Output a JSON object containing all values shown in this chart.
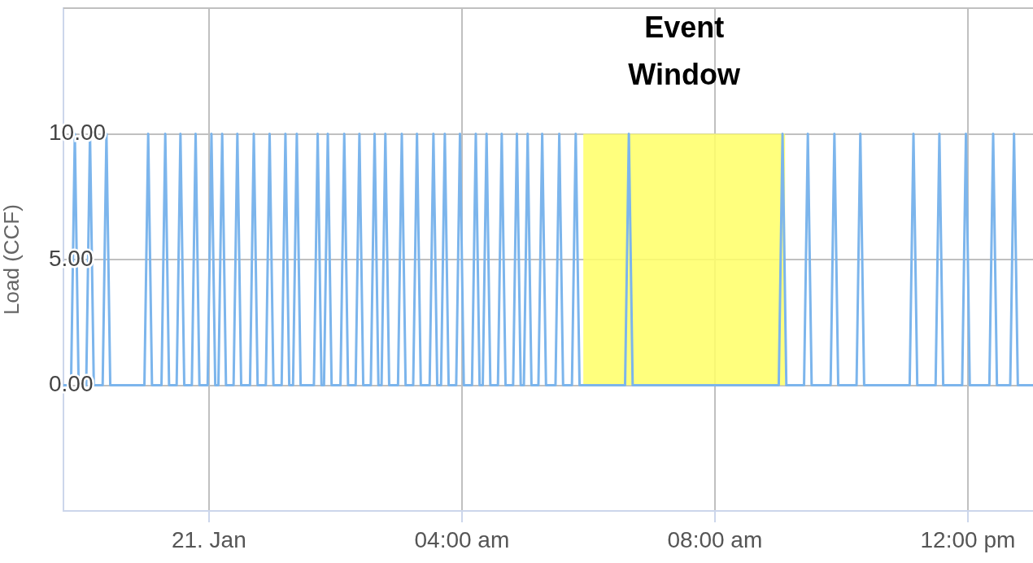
{
  "chart_data": {
    "type": "line",
    "ylabel": "Load (CCF)",
    "xlim": [
      -2.3,
      13.03
    ],
    "xticks": [
      {
        "value": 0,
        "label": "21. Jan"
      },
      {
        "value": 4,
        "label": "04:00 am"
      },
      {
        "value": 8,
        "label": "08:00 am"
      },
      {
        "value": 12,
        "label": "12:00 pm"
      }
    ],
    "ylim": [
      -5,
      15
    ],
    "yticks": [
      {
        "value": 0,
        "label": "0.00"
      },
      {
        "value": 5,
        "label": "5.00"
      },
      {
        "value": 10,
        "label": "10.00"
      }
    ],
    "grid": true,
    "marker": "none",
    "line_style": "solid",
    "bands": [
      {
        "axis": "x",
        "from": 5.92,
        "to": 9.11,
        "label": "Event Window",
        "color": "#ffff66"
      }
    ],
    "series": [
      {
        "color": "#7cb5ec",
        "x": [
          -2.3,
          -2.18,
          -2.12,
          -2.06,
          -1.94,
          -1.88,
          -1.82,
          -1.68,
          -1.62,
          -1.56,
          -1.02,
          -0.96,
          -0.9,
          -0.75,
          -0.69,
          -0.63,
          -0.51,
          -0.45,
          -0.39,
          -0.27,
          -0.21,
          -0.15,
          -0.02,
          0.04,
          0.1,
          0.15,
          0.21,
          0.27,
          0.39,
          0.45,
          0.51,
          0.65,
          0.71,
          0.77,
          0.9,
          0.96,
          1.02,
          1.15,
          1.21,
          1.27,
          1.33,
          1.39,
          1.45,
          1.66,
          1.72,
          1.78,
          1.82,
          1.88,
          1.94,
          2.08,
          2.14,
          2.2,
          2.32,
          2.38,
          2.44,
          2.56,
          2.62,
          2.68,
          2.73,
          2.79,
          2.85,
          2.99,
          3.05,
          3.11,
          3.23,
          3.29,
          3.35,
          3.49,
          3.55,
          3.61,
          3.67,
          3.73,
          3.79,
          3.91,
          3.97,
          4.03,
          4.16,
          4.22,
          4.28,
          4.33,
          4.39,
          4.45,
          4.57,
          4.63,
          4.69,
          4.81,
          4.87,
          4.93,
          4.98,
          5.04,
          5.1,
          5.21,
          5.27,
          5.33,
          5.48,
          5.54,
          5.6,
          5.74,
          5.8,
          5.86,
          6.58,
          6.64,
          6.7,
          9.01,
          9.07,
          9.13,
          9.41,
          9.47,
          9.53,
          9.83,
          9.89,
          9.95,
          10.24,
          10.3,
          10.36,
          11.08,
          11.14,
          11.2,
          11.49,
          11.55,
          11.61,
          11.91,
          11.97,
          12.03,
          12.34,
          12.4,
          12.46,
          12.67,
          12.73,
          12.79,
          13.03
        ],
        "values": [
          0,
          0,
          10,
          0,
          0,
          10,
          0,
          0,
          10,
          0,
          0,
          10,
          0,
          0,
          10,
          0,
          0,
          10,
          0,
          0,
          10,
          0,
          0,
          10,
          0,
          0,
          10,
          0,
          0,
          10,
          0,
          0,
          10,
          0,
          0,
          10,
          0,
          0,
          10,
          0,
          0,
          10,
          0,
          0,
          10,
          0,
          0,
          10,
          0,
          0,
          10,
          0,
          0,
          10,
          0,
          0,
          10,
          0,
          0,
          10,
          0,
          0,
          10,
          0,
          0,
          10,
          0,
          0,
          10,
          0,
          0,
          10,
          0,
          0,
          10,
          0,
          0,
          10,
          0,
          0,
          10,
          0,
          0,
          10,
          0,
          0,
          10,
          0,
          0,
          10,
          0,
          0,
          10,
          0,
          0,
          10,
          0,
          0,
          10,
          0,
          0,
          10,
          0,
          0,
          10,
          0,
          0,
          10,
          0,
          0,
          10,
          0,
          0,
          10,
          0,
          0,
          10,
          0,
          0,
          10,
          0,
          0,
          10,
          0,
          0,
          10,
          0,
          0,
          10,
          0,
          0
        ]
      }
    ]
  }
}
